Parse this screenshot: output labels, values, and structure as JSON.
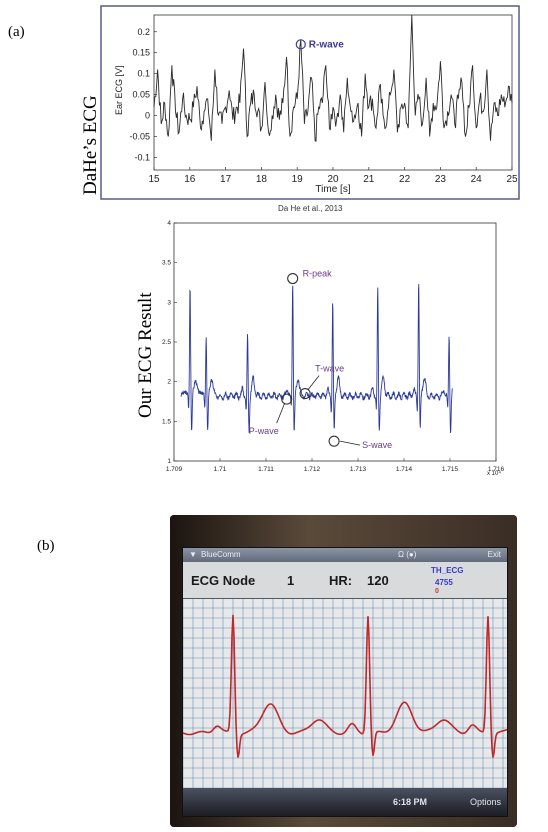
{
  "panel_a_label": "(a)",
  "panel_b_label": "(b)",
  "top_ylabel_outer": "DaHe’s ECG",
  "mid_ylabel_outer": "Our ECG Result",
  "caption_top": "Da He et al., 2013",
  "colors": {
    "signal_top": "#2a2a2a",
    "signal_mid": "#2b3a9a",
    "annotation": "#6a3a8a",
    "phone_trace": "#c0282c",
    "grid": "#3a6aa0"
  },
  "chart_data": [
    {
      "type": "line",
      "ylabel": "Ear ECG [V]",
      "xlabel": "Time [s]",
      "xlim": [
        15,
        25
      ],
      "ylim": [
        -0.13,
        0.24
      ],
      "xticks": [
        15,
        16,
        17,
        18,
        19,
        20,
        21,
        22,
        23,
        24,
        25
      ],
      "yticks": [
        -0.1,
        -0.05,
        0,
        0.05,
        0.1,
        0.15,
        0.2
      ],
      "annotations": [
        {
          "label": "R-wave",
          "x": 19.1,
          "y": 0.17
        }
      ],
      "series": [
        {
          "x": [
            15.0,
            15.1,
            15.2,
            15.3,
            15.4,
            15.5,
            15.6,
            15.7,
            15.8,
            15.9,
            16.0,
            16.1,
            16.2,
            16.3,
            16.4,
            16.5,
            16.6,
            16.7,
            16.8,
            16.9,
            17.0,
            17.1,
            17.2,
            17.3,
            17.4,
            17.5,
            17.6,
            17.7,
            17.8,
            17.9,
            18.0,
            18.1,
            18.2,
            18.3,
            18.4,
            18.5,
            18.6,
            18.7,
            18.8,
            18.9,
            19.0,
            19.1,
            19.2,
            19.3,
            19.4,
            19.5,
            19.6,
            19.7,
            19.8,
            19.9,
            20.0,
            20.1,
            20.2,
            20.3,
            20.4,
            20.5,
            20.6,
            20.7,
            20.8,
            20.9,
            21.0,
            21.1,
            21.2,
            21.3,
            21.4,
            21.5,
            21.6,
            21.7,
            21.8,
            21.9,
            22.0,
            22.1,
            22.2,
            22.3,
            22.4,
            22.5,
            22.6,
            22.7,
            22.8,
            22.9,
            23.0,
            23.1,
            23.2,
            23.3,
            23.4,
            23.5,
            23.6,
            23.7,
            23.8,
            23.9,
            24.0,
            24.1,
            24.2,
            24.3,
            24.4,
            24.5,
            24.6,
            24.7,
            24.8,
            24.9,
            25.0
          ],
          "values": [
            0.02,
            0.11,
            -0.02,
            0.03,
            -0.05,
            0.12,
            0.01,
            -0.04,
            0.04,
            0.0,
            -0.01,
            0.02,
            0.07,
            -0.03,
            0.01,
            0.04,
            -0.06,
            0.11,
            0.0,
            -0.02,
            0.02,
            0.06,
            -0.01,
            0.02,
            0.03,
            0.16,
            -0.05,
            0.03,
            0.05,
            0.01,
            -0.03,
            0.08,
            -0.04,
            0.0,
            0.05,
            -0.01,
            0.03,
            0.14,
            -0.05,
            0.02,
            0.04,
            0.18,
            -0.02,
            0.01,
            0.09,
            -0.06,
            0.02,
            0.03,
            0.12,
            -0.03,
            0.02,
            -0.01,
            0.05,
            -0.04,
            0.09,
            0.01,
            0.0,
            0.03,
            -0.05,
            0.1,
            0.02,
            0.04,
            -0.03,
            0.07,
            0.0,
            -0.02,
            0.05,
            0.11,
            -0.04,
            0.02,
            0.03,
            -0.03,
            0.24,
            0.0,
            0.04,
            -0.02,
            0.09,
            -0.05,
            0.03,
            0.02,
            0.13,
            -0.03,
            0.01,
            0.05,
            -0.02,
            0.04,
            0.08,
            -0.05,
            0.02,
            0.12,
            -0.03,
            0.04,
            0.01,
            0.11,
            -0.06,
            0.03,
            0.0,
            0.05,
            0.02,
            0.07,
            0.03
          ]
        }
      ]
    },
    {
      "type": "line",
      "xlim": [
        1.709,
        1.716
      ],
      "ylim": [
        1.0,
        4.0
      ],
      "xticks": [
        1.709,
        1.71,
        1.711,
        1.712,
        1.713,
        1.714,
        1.715,
        1.716
      ],
      "xtick_labels": [
        "1.709",
        "1.71",
        "1.711",
        "1.712",
        "1.713",
        "1.714",
        "1.715",
        "1.716"
      ],
      "yticks": [
        1.0,
        1.5,
        2.0,
        2.5,
        3.0,
        3.5,
        4.0
      ],
      "ytick_labels": [
        "1",
        "1.5",
        "2",
        "2.5",
        "3",
        "3.5",
        "4"
      ],
      "x_multiplier": "x 10⁴",
      "annotations": [
        {
          "label": "R-peak",
          "x": 1.71158,
          "y": 3.3
        },
        {
          "label": "T-wave",
          "x": 1.71185,
          "y": 1.85
        },
        {
          "label": "P-wave",
          "x": 1.71145,
          "y": 1.78
        },
        {
          "label": "S-wave",
          "x": 1.71248,
          "y": 1.25
        }
      ],
      "beats_x": [
        1.70935,
        1.7097,
        1.7106,
        1.71158,
        1.71245,
        1.71343,
        1.71432,
        1.71498
      ],
      "beats_peak": [
        3.25,
        2.6,
        2.6,
        3.3,
        3.0,
        3.2,
        3.3,
        2.6
      ],
      "baseline": 1.82
    }
  ],
  "phone": {
    "app_name": "BlueComm",
    "status_icons": "Ω (●)",
    "exit_label": "Exit",
    "node_label": "ECG Node",
    "node_value": "1",
    "hr_label": "HR:",
    "hr_value": "120",
    "side_line1": "TH_ECG",
    "side_line2": "4755",
    "side_line3": "0",
    "time": "6:18 PM",
    "options_label": "Options"
  }
}
